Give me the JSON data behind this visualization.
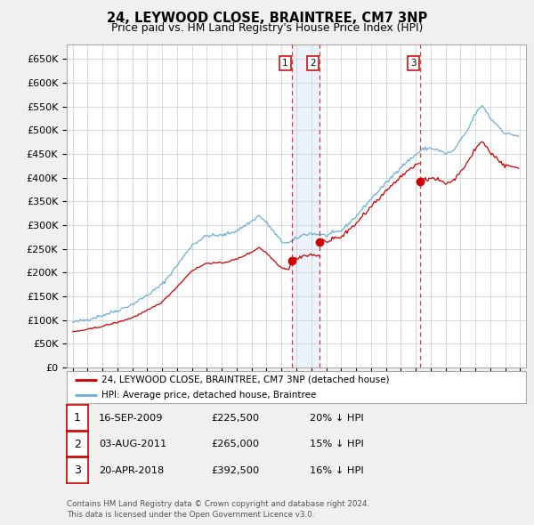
{
  "title": "24, LEYWOOD CLOSE, BRAINTREE, CM7 3NP",
  "subtitle": "Price paid vs. HM Land Registry's House Price Index (HPI)",
  "ylim": [
    0,
    680000
  ],
  "yticks": [
    0,
    50000,
    100000,
    150000,
    200000,
    250000,
    300000,
    350000,
    400000,
    450000,
    500000,
    550000,
    600000,
    650000
  ],
  "ytick_labels": [
    "£0",
    "£50K",
    "£100K",
    "£150K",
    "£200K",
    "£250K",
    "£300K",
    "£350K",
    "£400K",
    "£450K",
    "£500K",
    "£550K",
    "£600K",
    "£650K"
  ],
  "hpi_color": "#6baed6",
  "sale_color": "#cc0000",
  "vline_color": "#cc0000",
  "shade_color": "#dce9f5",
  "shade_alpha": 0.55,
  "sales_t": [
    2009.71,
    2011.58,
    2018.3
  ],
  "sales_p": [
    225500,
    265000,
    392500
  ],
  "legend_entries": [
    "24, LEYWOOD CLOSE, BRAINTREE, CM7 3NP (detached house)",
    "HPI: Average price, detached house, Braintree"
  ],
  "table_rows": [
    {
      "num": "1",
      "date": "16-SEP-2009",
      "price": "£225,500",
      "note": "20% ↓ HPI"
    },
    {
      "num": "2",
      "date": "03-AUG-2011",
      "price": "£265,000",
      "note": "15% ↓ HPI"
    },
    {
      "num": "3",
      "date": "20-APR-2018",
      "price": "£392,500",
      "note": "16% ↓ HPI"
    }
  ],
  "footnote": "Contains HM Land Registry data © Crown copyright and database right 2024.\nThis data is licensed under the Open Government Licence v3.0.",
  "background_color": "#f0f0f0",
  "plot_bg_color": "#ffffff",
  "grid_color": "#cccccc",
  "hpi_anchors_x": [
    1995.0,
    1996.0,
    1997.0,
    1998.0,
    1999.0,
    2000.0,
    2001.0,
    2002.0,
    2003.0,
    2004.0,
    2005.0,
    2006.0,
    2007.0,
    2007.5,
    2008.0,
    2008.5,
    2009.0,
    2009.5,
    2010.0,
    2010.5,
    2011.0,
    2011.5,
    2012.0,
    2013.0,
    2014.0,
    2015.0,
    2016.0,
    2017.0,
    2018.0,
    2018.5,
    2019.0,
    2019.5,
    2020.0,
    2020.5,
    2021.0,
    2021.5,
    2022.0,
    2022.5,
    2023.0,
    2023.5,
    2024.0,
    2024.9
  ],
  "hpi_anchors_y": [
    95000,
    101000,
    110000,
    120000,
    133000,
    152000,
    175000,
    215000,
    258000,
    278000,
    278000,
    288000,
    308000,
    320000,
    305000,
    285000,
    265000,
    262000,
    272000,
    280000,
    282000,
    280000,
    278000,
    288000,
    318000,
    355000,
    388000,
    422000,
    448000,
    460000,
    462000,
    458000,
    450000,
    455000,
    478000,
    500000,
    535000,
    552000,
    525000,
    510000,
    493000,
    488000
  ],
  "red_anchors_x": [
    1995.0,
    1996.0,
    1997.0,
    1998.0,
    1999.0,
    2000.0,
    2001.0,
    2002.0,
    2003.0,
    2004.0,
    2005.0,
    2006.0,
    2007.0,
    2007.5,
    2008.0,
    2008.5,
    2009.0,
    2009.5,
    2009.71
  ],
  "red_anchors_y": [
    75000,
    80000,
    87000,
    95000,
    105000,
    120000,
    138000,
    170000,
    204000,
    220000,
    220000,
    228000,
    243000,
    253000,
    241000,
    225000,
    210000,
    207000,
    225500
  ],
  "xlim_left": 1994.6,
  "xlim_right": 2025.4
}
